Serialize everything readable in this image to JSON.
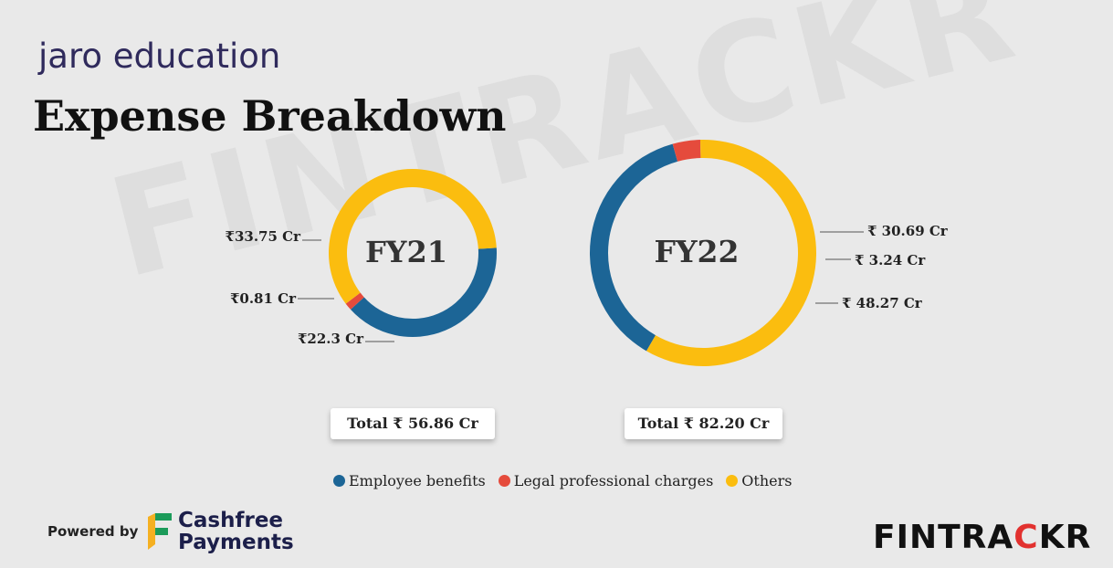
{
  "brand": "jaro education",
  "title": "Expense Breakdown",
  "watermark": "FINTRACKR",
  "colors": {
    "employee": "#1c6596",
    "legal": "#e54b3c",
    "others": "#fbbd0f"
  },
  "chart_data": [
    {
      "type": "pie",
      "style": "donut",
      "center_label": "FY21",
      "slices": [
        {
          "name": "Employee benefits",
          "value": 22.3,
          "label": "₹22.3 Cr"
        },
        {
          "name": "Legal professional charges",
          "value": 0.81,
          "label": "₹0.81 Cr"
        },
        {
          "name": "Others",
          "value": 33.75,
          "label": "₹33.75 Cr"
        }
      ],
      "total_label": "Total ₹ 56.86 Cr"
    },
    {
      "type": "pie",
      "style": "donut",
      "center_label": "FY22",
      "slices": [
        {
          "name": "Employee benefits",
          "value": 30.69,
          "label": "₹ 30.69 Cr"
        },
        {
          "name": "Legal professional charges",
          "value": 3.24,
          "label": "₹ 3.24 Cr"
        },
        {
          "name": "Others",
          "value": 48.27,
          "label": "₹ 48.27 Cr"
        }
      ],
      "total_label": "Total ₹ 82.20 Cr"
    }
  ],
  "legend": [
    {
      "label": "Employee benefits",
      "color": "#1c6596"
    },
    {
      "label": "Legal professional charges",
      "color": "#e54b3c"
    },
    {
      "label": "Others",
      "color": "#fbbd0f"
    }
  ],
  "footer": {
    "powered_by": "Powered by",
    "sponsor_line1": "Cashfree",
    "sponsor_line2": "Payments",
    "logo_part1": "FINTRA",
    "logo_part2": "C",
    "logo_part3": "KR"
  }
}
